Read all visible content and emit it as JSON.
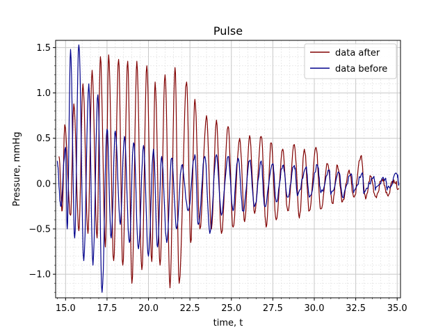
{
  "chart_data": {
    "type": "line",
    "title": "Pulse",
    "xlabel": "time, t",
    "ylabel": "Pressure, mmHg",
    "xlim": [
      14.4,
      35.2
    ],
    "ylim": [
      -1.26,
      1.58
    ],
    "x_ticks": [
      15.0,
      17.5,
      20.0,
      22.5,
      25.0,
      27.5,
      30.0,
      32.5,
      35.0
    ],
    "x_tick_labels": [
      "15.0",
      "17.5",
      "20.0",
      "22.5",
      "25.0",
      "27.5",
      "30.0",
      "32.5",
      "35.0"
    ],
    "y_ticks": [
      -1.0,
      -0.5,
      0.0,
      0.5,
      1.0,
      1.5
    ],
    "y_tick_labels": [
      "−1.0",
      "−0.5",
      "0.0",
      "0.5",
      "1.0",
      "1.5"
    ],
    "grid": "major and minor",
    "legend_position": "top-right",
    "series": [
      {
        "name": "data after",
        "color": "#800000",
        "peaks": [
          [
            14.6,
            0.3
          ],
          [
            14.95,
            0.65
          ],
          [
            15.5,
            0.88
          ],
          [
            16.05,
            1.1
          ],
          [
            16.6,
            1.25
          ],
          [
            17.1,
            1.4
          ],
          [
            17.6,
            1.42
          ],
          [
            18.2,
            1.37
          ],
          [
            18.75,
            1.35
          ],
          [
            19.3,
            1.35
          ],
          [
            19.9,
            1.3
          ],
          [
            20.4,
            1.12
          ],
          [
            21.0,
            1.2
          ],
          [
            21.6,
            1.28
          ],
          [
            22.3,
            1.12
          ],
          [
            22.8,
            0.93
          ],
          [
            23.5,
            0.75
          ],
          [
            24.1,
            0.7
          ],
          [
            24.8,
            0.63
          ],
          [
            25.5,
            0.5
          ],
          [
            26.1,
            0.53
          ],
          [
            26.8,
            0.52
          ],
          [
            27.4,
            0.45
          ],
          [
            28.1,
            0.38
          ],
          [
            28.8,
            0.43
          ],
          [
            29.4,
            0.38
          ],
          [
            30.1,
            0.4
          ],
          [
            30.8,
            0.22
          ],
          [
            31.4,
            0.2
          ],
          [
            32.1,
            0.15
          ],
          [
            32.8,
            0.3
          ],
          [
            33.4,
            0.08
          ],
          [
            34.1,
            0.05
          ],
          [
            34.8,
            0.04
          ]
        ],
        "troughs": [
          [
            14.8,
            -0.3
          ],
          [
            15.3,
            -0.35
          ],
          [
            15.8,
            -0.52
          ],
          [
            16.35,
            -0.55
          ],
          [
            16.9,
            -0.6
          ],
          [
            17.4,
            -0.7
          ],
          [
            17.9,
            -0.85
          ],
          [
            18.45,
            -0.9
          ],
          [
            19.0,
            -1.1
          ],
          [
            19.6,
            -0.95
          ],
          [
            20.2,
            -0.86
          ],
          [
            20.7,
            -0.9
          ],
          [
            21.3,
            -1.15
          ],
          [
            21.85,
            -1.1
          ],
          [
            22.55,
            -0.65
          ],
          [
            23.1,
            -0.5
          ],
          [
            23.8,
            -0.5
          ],
          [
            24.4,
            -0.55
          ],
          [
            25.1,
            -0.48
          ],
          [
            25.8,
            -0.42
          ],
          [
            26.4,
            -0.33
          ],
          [
            27.1,
            -0.48
          ],
          [
            27.7,
            -0.4
          ],
          [
            28.4,
            -0.3
          ],
          [
            29.1,
            -0.38
          ],
          [
            29.7,
            -0.3
          ],
          [
            30.4,
            -0.28
          ],
          [
            31.1,
            -0.22
          ],
          [
            31.7,
            -0.2
          ],
          [
            32.4,
            -0.15
          ],
          [
            33.1,
            -0.17
          ],
          [
            33.7,
            -0.14
          ],
          [
            34.4,
            -0.12
          ],
          [
            35.1,
            -0.05
          ]
        ]
      },
      {
        "name": "data before",
        "color": "#00008b",
        "peaks": [
          [
            14.5,
            0.25
          ],
          [
            15.0,
            0.4
          ],
          [
            15.3,
            1.48
          ],
          [
            15.8,
            1.53
          ],
          [
            16.4,
            1.1
          ],
          [
            16.95,
            0.98
          ],
          [
            17.5,
            0.6
          ],
          [
            18.0,
            0.58
          ],
          [
            18.55,
            0.52
          ],
          [
            19.1,
            0.45
          ],
          [
            19.7,
            0.42
          ],
          [
            20.3,
            0.38
          ],
          [
            20.8,
            0.3
          ],
          [
            21.4,
            0.28
          ],
          [
            22.0,
            0.2
          ],
          [
            22.8,
            0.32
          ],
          [
            23.4,
            0.3
          ],
          [
            24.1,
            0.32
          ],
          [
            24.8,
            0.3
          ],
          [
            25.4,
            0.28
          ],
          [
            26.1,
            0.25
          ],
          [
            26.8,
            0.25
          ],
          [
            27.5,
            0.22
          ],
          [
            28.1,
            0.2
          ],
          [
            28.8,
            0.2
          ],
          [
            29.5,
            0.18
          ],
          [
            30.2,
            0.2
          ],
          [
            30.9,
            0.15
          ],
          [
            31.5,
            0.12
          ],
          [
            32.2,
            0.1
          ],
          [
            32.9,
            0.12
          ],
          [
            33.6,
            0.08
          ],
          [
            34.3,
            0.06
          ],
          [
            35.0,
            0.1
          ]
        ],
        "troughs": [
          [
            14.7,
            -0.25
          ],
          [
            15.1,
            -0.5
          ],
          [
            15.55,
            -0.6
          ],
          [
            16.1,
            -0.85
          ],
          [
            16.65,
            -0.9
          ],
          [
            17.2,
            -1.2
          ],
          [
            17.75,
            -0.6
          ],
          [
            18.3,
            -0.45
          ],
          [
            18.85,
            -0.65
          ],
          [
            19.4,
            -0.72
          ],
          [
            20.0,
            -0.8
          ],
          [
            20.55,
            -0.7
          ],
          [
            21.1,
            -0.65
          ],
          [
            21.7,
            -0.5
          ],
          [
            22.4,
            -0.3
          ],
          [
            23.0,
            -0.45
          ],
          [
            23.7,
            -0.55
          ],
          [
            24.4,
            -0.35
          ],
          [
            25.1,
            -0.3
          ],
          [
            25.7,
            -0.3
          ],
          [
            26.4,
            -0.25
          ],
          [
            27.0,
            -0.25
          ],
          [
            27.7,
            -0.2
          ],
          [
            28.4,
            -0.15
          ],
          [
            29.0,
            -0.13
          ],
          [
            29.7,
            -0.15
          ],
          [
            30.4,
            -0.1
          ],
          [
            31.0,
            -0.12
          ],
          [
            31.7,
            -0.15
          ],
          [
            32.4,
            -0.08
          ],
          [
            33.0,
            -0.1
          ],
          [
            33.7,
            -0.05
          ],
          [
            34.4,
            -0.06
          ],
          [
            35.1,
            0.0
          ]
        ]
      }
    ]
  }
}
